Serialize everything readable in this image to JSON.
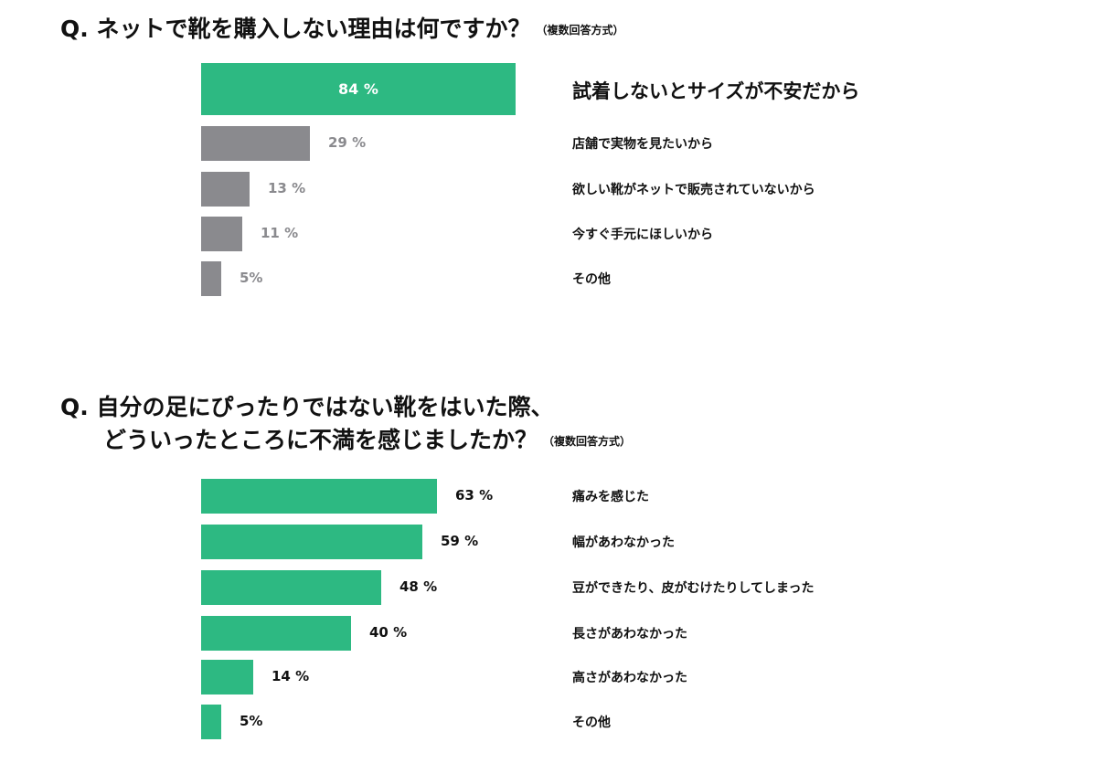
{
  "colors": {
    "accent": "#2db982",
    "gray": "#8a8a8e",
    "gray_text": "#8a8a8e",
    "white": "#ffffff"
  },
  "chart_data": [
    {
      "type": "bar",
      "orientation": "horizontal",
      "title": "Q. ネットで靴を購入しない理由は何ですか？",
      "note": "（複数回答方式）",
      "categories": [
        "試着しないとサイズが不安だから",
        "店舗で実物を見たいから",
        "欲しい靴がネットで販売されていないから",
        "今すぐ手元にほしいから",
        "その他"
      ],
      "values": [
        84,
        29,
        13,
        11,
        5
      ],
      "value_labels": [
        "84 %",
        "29 %",
        "13 %",
        "11 %",
        "5%"
      ],
      "unit": "%",
      "highlight_first": true
    },
    {
      "type": "bar",
      "orientation": "horizontal",
      "title": "Q. 自分の足にぴったりではない靴をはいた際、",
      "title_line2": "どういったところに不満を感じましたか？",
      "note": "（複数回答方式）",
      "categories": [
        "痛みを感じた",
        "幅があわなかった",
        "豆ができたり、皮がむけたりしてしまった",
        "長さがあわなかった",
        "高さがあわなかった",
        "その他"
      ],
      "values": [
        63,
        59,
        48,
        40,
        14,
        5
      ],
      "value_labels": [
        "63 %",
        "59 %",
        "48 %",
        "40 %",
        "14 %",
        "5%"
      ],
      "unit": "%"
    }
  ]
}
